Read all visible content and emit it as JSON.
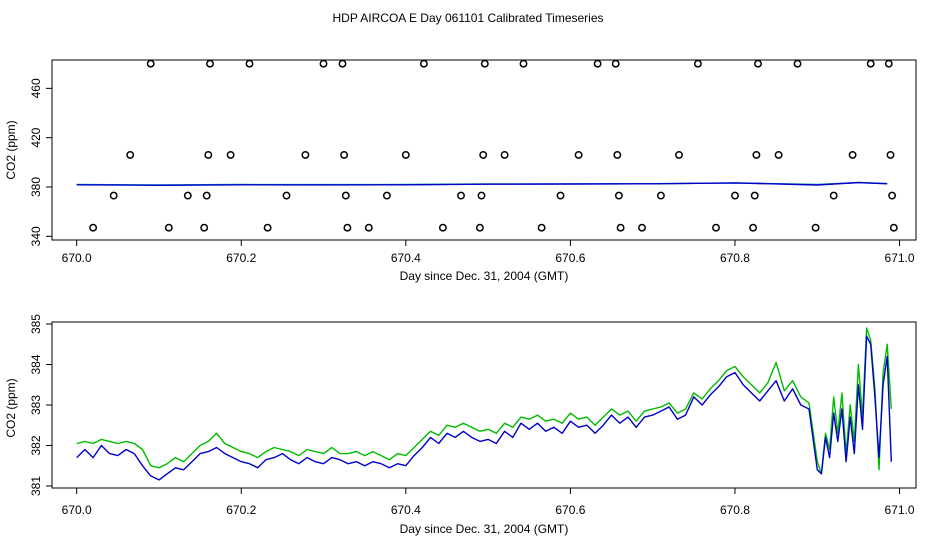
{
  "title": "HDP AIRCOA E  Day 061101  Calibrated Timeseries",
  "chart_data": [
    {
      "type": "scatter",
      "xlabel": "Day since Dec. 31, 2004 (GMT)",
      "ylabel": "CO2 (ppm)",
      "xlim": [
        669.97,
        671.02
      ],
      "ylim": [
        337,
        483
      ],
      "x_ticks": [
        "670.0",
        "670.2",
        "670.4",
        "670.6",
        "670.8",
        "671.0"
      ],
      "y_ticks": [
        "340",
        "380",
        "420",
        "460"
      ],
      "points": [
        [
          670.02,
          347
        ],
        [
          670.045,
          373
        ],
        [
          670.065,
          406
        ],
        [
          670.09,
          480
        ],
        [
          670.112,
          347
        ],
        [
          670.135,
          373
        ],
        [
          670.155,
          347
        ],
        [
          670.158,
          373
        ],
        [
          670.16,
          406
        ],
        [
          670.162,
          480
        ],
        [
          670.187,
          406
        ],
        [
          670.21,
          480
        ],
        [
          670.232,
          347
        ],
        [
          670.255,
          373
        ],
        [
          670.278,
          406
        ],
        [
          670.3,
          480
        ],
        [
          670.323,
          480
        ],
        [
          670.325,
          406
        ],
        [
          670.327,
          373
        ],
        [
          670.329,
          347
        ],
        [
          670.355,
          347
        ],
        [
          670.377,
          373
        ],
        [
          670.4,
          406
        ],
        [
          670.422,
          480
        ],
        [
          670.445,
          347
        ],
        [
          670.467,
          373
        ],
        [
          670.49,
          347
        ],
        [
          670.492,
          373
        ],
        [
          670.494,
          406
        ],
        [
          670.496,
          480
        ],
        [
          670.52,
          406
        ],
        [
          670.543,
          480
        ],
        [
          670.565,
          347
        ],
        [
          670.588,
          373
        ],
        [
          670.61,
          406
        ],
        [
          670.633,
          480
        ],
        [
          670.655,
          480
        ],
        [
          670.657,
          406
        ],
        [
          670.659,
          373
        ],
        [
          670.661,
          347
        ],
        [
          670.687,
          347
        ],
        [
          670.71,
          373
        ],
        [
          670.732,
          406
        ],
        [
          670.755,
          480
        ],
        [
          670.777,
          347
        ],
        [
          670.8,
          373
        ],
        [
          670.822,
          347
        ],
        [
          670.824,
          373
        ],
        [
          670.826,
          406
        ],
        [
          670.828,
          480
        ],
        [
          670.853,
          406
        ],
        [
          670.876,
          480
        ],
        [
          670.898,
          347
        ],
        [
          670.92,
          373
        ],
        [
          670.943,
          406
        ],
        [
          670.965,
          480
        ],
        [
          670.987,
          480
        ],
        [
          670.989,
          406
        ],
        [
          670.991,
          373
        ],
        [
          670.993,
          347
        ]
      ],
      "series": [
        {
          "color": "#009999",
          "x": [
            670.0,
            670.1,
            670.2,
            670.3,
            670.4,
            670.5,
            670.6,
            670.7,
            670.8,
            670.9,
            670.95,
            670.985
          ],
          "values": [
            382.1,
            381.6,
            382.0,
            381.9,
            382.0,
            382.5,
            382.5,
            382.7,
            383.3,
            382.0,
            383.5,
            382.9
          ]
        },
        {
          "color": "#0000cc",
          "x": [
            670.0,
            670.1,
            670.2,
            670.3,
            670.4,
            670.5,
            670.6,
            670.7,
            670.8,
            670.9,
            670.95,
            670.985
          ],
          "values": [
            381.8,
            381.4,
            381.8,
            381.7,
            381.8,
            382.3,
            382.4,
            382.6,
            383.3,
            381.6,
            383.6,
            382.6
          ]
        }
      ]
    },
    {
      "type": "line",
      "xlabel": "Day since Dec. 31, 2004 (GMT)",
      "ylabel": "CO2 (ppm)",
      "xlim": [
        669.97,
        671.02
      ],
      "ylim": [
        380.95,
        385.05
      ],
      "x_ticks": [
        "670.0",
        "670.2",
        "670.4",
        "670.6",
        "670.8",
        "671.0"
      ],
      "y_ticks": [
        "381",
        "382",
        "383",
        "384",
        "385"
      ],
      "series": [
        {
          "color": "#00bb00",
          "x": [
            670.0,
            670.01,
            670.02,
            670.03,
            670.04,
            670.05,
            670.06,
            670.07,
            670.08,
            670.09,
            670.1,
            670.11,
            670.12,
            670.13,
            670.14,
            670.15,
            670.16,
            670.17,
            670.18,
            670.19,
            670.2,
            670.21,
            670.22,
            670.23,
            670.24,
            670.25,
            670.26,
            670.27,
            670.28,
            670.29,
            670.3,
            670.31,
            670.32,
            670.33,
            670.34,
            670.35,
            670.36,
            670.37,
            670.38,
            670.39,
            670.4,
            670.41,
            670.42,
            670.43,
            670.44,
            670.45,
            670.46,
            670.47,
            670.48,
            670.49,
            670.5,
            670.51,
            670.52,
            670.53,
            670.54,
            670.55,
            670.56,
            670.57,
            670.58,
            670.59,
            670.6,
            670.61,
            670.62,
            670.63,
            670.64,
            670.65,
            670.66,
            670.67,
            670.68,
            670.69,
            670.7,
            670.71,
            670.72,
            670.73,
            670.74,
            670.75,
            670.76,
            670.77,
            670.78,
            670.79,
            670.8,
            670.81,
            670.82,
            670.83,
            670.84,
            670.85,
            670.86,
            670.87,
            670.88,
            670.89,
            670.9,
            670.905,
            670.91,
            670.915,
            670.92,
            670.925,
            670.93,
            670.935,
            670.94,
            670.945,
            670.95,
            670.955,
            670.96,
            670.965,
            670.97,
            670.975,
            670.98,
            670.985,
            670.99
          ],
          "values": [
            382.05,
            382.1,
            382.05,
            382.15,
            382.1,
            382.05,
            382.1,
            382.05,
            381.9,
            381.5,
            381.45,
            381.55,
            381.7,
            381.6,
            381.8,
            382.0,
            382.1,
            382.3,
            382.05,
            381.95,
            381.85,
            381.8,
            381.7,
            381.85,
            381.95,
            381.9,
            381.85,
            381.75,
            381.9,
            381.85,
            381.8,
            381.95,
            381.8,
            381.8,
            381.85,
            381.75,
            381.85,
            381.75,
            381.65,
            381.8,
            381.75,
            381.95,
            382.15,
            382.35,
            382.25,
            382.5,
            382.45,
            382.55,
            382.45,
            382.35,
            382.4,
            382.3,
            382.55,
            382.45,
            382.7,
            382.65,
            382.75,
            382.6,
            382.65,
            382.55,
            382.8,
            382.65,
            382.7,
            382.5,
            382.7,
            382.9,
            382.75,
            382.85,
            382.6,
            382.85,
            382.9,
            382.95,
            383.05,
            382.8,
            382.9,
            383.3,
            383.15,
            383.4,
            383.6,
            383.85,
            383.95,
            383.7,
            383.5,
            383.3,
            383.55,
            384.05,
            383.35,
            383.6,
            383.2,
            383.05,
            381.6,
            381.3,
            382.3,
            381.9,
            383.2,
            382.3,
            383.3,
            381.8,
            383.0,
            382.1,
            384.0,
            382.7,
            384.9,
            384.6,
            383.4,
            381.4,
            383.8,
            384.5,
            382.9
          ]
        },
        {
          "color": "#0000cc",
          "x": [
            670.0,
            670.01,
            670.02,
            670.03,
            670.04,
            670.05,
            670.06,
            670.07,
            670.08,
            670.09,
            670.1,
            670.11,
            670.12,
            670.13,
            670.14,
            670.15,
            670.16,
            670.17,
            670.18,
            670.19,
            670.2,
            670.21,
            670.22,
            670.23,
            670.24,
            670.25,
            670.26,
            670.27,
            670.28,
            670.29,
            670.3,
            670.31,
            670.32,
            670.33,
            670.34,
            670.35,
            670.36,
            670.37,
            670.38,
            670.39,
            670.4,
            670.41,
            670.42,
            670.43,
            670.44,
            670.45,
            670.46,
            670.47,
            670.48,
            670.49,
            670.5,
            670.51,
            670.52,
            670.53,
            670.54,
            670.55,
            670.56,
            670.57,
            670.58,
            670.59,
            670.6,
            670.61,
            670.62,
            670.63,
            670.64,
            670.65,
            670.66,
            670.67,
            670.68,
            670.69,
            670.7,
            670.71,
            670.72,
            670.73,
            670.74,
            670.75,
            670.76,
            670.77,
            670.78,
            670.79,
            670.8,
            670.81,
            670.82,
            670.83,
            670.84,
            670.85,
            670.86,
            670.87,
            670.88,
            670.89,
            670.9,
            670.905,
            670.91,
            670.915,
            670.92,
            670.925,
            670.93,
            670.935,
            670.94,
            670.945,
            670.95,
            670.955,
            670.96,
            670.965,
            670.97,
            670.975,
            670.98,
            670.985,
            670.99
          ],
          "values": [
            381.7,
            381.9,
            381.7,
            382.0,
            381.8,
            381.75,
            381.9,
            381.8,
            381.5,
            381.25,
            381.15,
            381.3,
            381.45,
            381.4,
            381.6,
            381.8,
            381.85,
            381.95,
            381.8,
            381.7,
            381.6,
            381.55,
            381.45,
            381.65,
            381.7,
            381.8,
            381.65,
            381.55,
            381.7,
            381.6,
            381.55,
            381.7,
            381.65,
            381.55,
            381.6,
            381.5,
            381.6,
            381.55,
            381.45,
            381.55,
            381.5,
            381.75,
            381.95,
            382.2,
            382.05,
            382.3,
            382.2,
            382.35,
            382.2,
            382.1,
            382.15,
            382.05,
            382.35,
            382.2,
            382.55,
            382.4,
            382.55,
            382.35,
            382.45,
            382.3,
            382.6,
            382.45,
            382.5,
            382.3,
            382.5,
            382.75,
            382.55,
            382.7,
            382.45,
            382.7,
            382.75,
            382.85,
            382.95,
            382.65,
            382.75,
            383.2,
            383.0,
            383.25,
            383.45,
            383.7,
            383.8,
            383.5,
            383.3,
            383.1,
            383.35,
            383.6,
            383.1,
            383.4,
            383.0,
            382.9,
            381.4,
            381.3,
            382.2,
            381.7,
            382.8,
            382.1,
            382.9,
            381.6,
            382.7,
            381.8,
            383.5,
            382.4,
            384.7,
            384.5,
            383.2,
            381.7,
            383.5,
            384.2,
            381.6
          ]
        }
      ]
    }
  ]
}
